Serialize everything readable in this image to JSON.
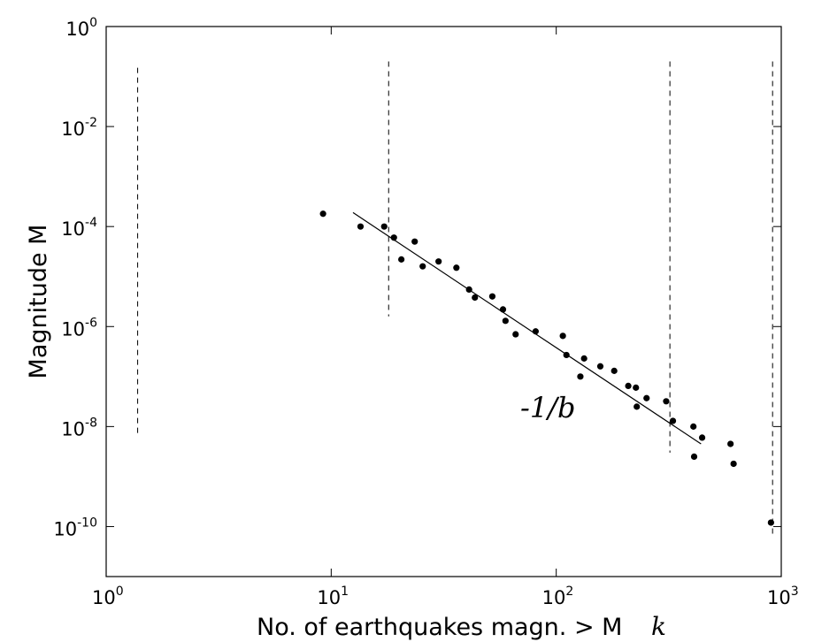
{
  "chart_data": {
    "type": "scatter",
    "title": "",
    "xlabel": "No. of earthquakes magn. > M",
    "xlabel_suffix": "k",
    "ylabel": "Magnitude M",
    "xscale": "log",
    "yscale": "log",
    "xlim": [
      1,
      1000
    ],
    "ylim": [
      1e-11,
      1
    ],
    "grid": false,
    "legend": "none",
    "x_ticks": [
      {
        "base": "10",
        "exp": "0",
        "value": 1
      },
      {
        "base": "10",
        "exp": "1",
        "value": 10
      },
      {
        "base": "10",
        "exp": "2",
        "value": 100
      },
      {
        "base": "10",
        "exp": "3",
        "value": 1000
      }
    ],
    "y_ticks": [
      {
        "base": "10",
        "exp": "0",
        "value": 1
      },
      {
        "base": "10",
        "exp": "-2",
        "value": 0.01
      },
      {
        "base": "10",
        "exp": "-4",
        "value": 0.0001
      },
      {
        "base": "10",
        "exp": "-6",
        "value": 1e-06
      },
      {
        "base": "10",
        "exp": "-8",
        "value": 1e-08
      },
      {
        "base": "10",
        "exp": "-10",
        "value": 1e-10
      }
    ],
    "points": [
      {
        "x": 9.2,
        "y": 0.00018
      },
      {
        "x": 13.5,
        "y": 0.0001
      },
      {
        "x": 17.2,
        "y": 0.0001
      },
      {
        "x": 19.0,
        "y": 6e-05
      },
      {
        "x": 20.5,
        "y": 2.2e-05
      },
      {
        "x": 23.5,
        "y": 5e-05
      },
      {
        "x": 25.5,
        "y": 1.6e-05
      },
      {
        "x": 30.0,
        "y": 2e-05
      },
      {
        "x": 36.0,
        "y": 1.5e-05
      },
      {
        "x": 41.0,
        "y": 5.5e-06
      },
      {
        "x": 43.5,
        "y": 3.8e-06
      },
      {
        "x": 52.0,
        "y": 4e-06
      },
      {
        "x": 58.0,
        "y": 2.2e-06
      },
      {
        "x": 59.5,
        "y": 1.3e-06
      },
      {
        "x": 66.0,
        "y": 7e-07
      },
      {
        "x": 81.0,
        "y": 8e-07
      },
      {
        "x": 107.0,
        "y": 6.5e-07
      },
      {
        "x": 111.0,
        "y": 2.7e-07
      },
      {
        "x": 128.0,
        "y": 1e-07
      },
      {
        "x": 133.0,
        "y": 2.3e-07
      },
      {
        "x": 157.0,
        "y": 1.6e-07
      },
      {
        "x": 181.0,
        "y": 1.3e-07
      },
      {
        "x": 209.0,
        "y": 6.5e-08
      },
      {
        "x": 226.0,
        "y": 6e-08
      },
      {
        "x": 228.0,
        "y": 2.5e-08
      },
      {
        "x": 252.0,
        "y": 3.7e-08
      },
      {
        "x": 308.0,
        "y": 3.2e-08
      },
      {
        "x": 330.0,
        "y": 1.3e-08
      },
      {
        "x": 407.0,
        "y": 1e-08
      },
      {
        "x": 410.0,
        "y": 2.5e-09
      },
      {
        "x": 445.0,
        "y": 6e-09
      },
      {
        "x": 595.0,
        "y": 4.5e-09
      },
      {
        "x": 614.0,
        "y": 1.8e-09
      },
      {
        "x": 900.0,
        "y": 1.2e-10
      }
    ],
    "fit_line": {
      "x": [
        12.5,
        440.0
      ],
      "y": [
        0.00019,
        4.5e-09
      ]
    },
    "fit_annotation": "-1/b",
    "dashed_verticals": [
      {
        "x": 1.38,
        "y_range": [
          7e-09,
          0.15
        ]
      },
      {
        "x": 18.0,
        "y_range": [
          1.6e-06,
          0.2
        ]
      },
      {
        "x": 320.0,
        "y_range": [
          3e-09,
          0.2
        ]
      },
      {
        "x": 915.0,
        "y_range": [
          6e-11,
          0.2
        ]
      }
    ],
    "colors": {
      "marks": "#000000",
      "background": "#ffffff"
    }
  }
}
